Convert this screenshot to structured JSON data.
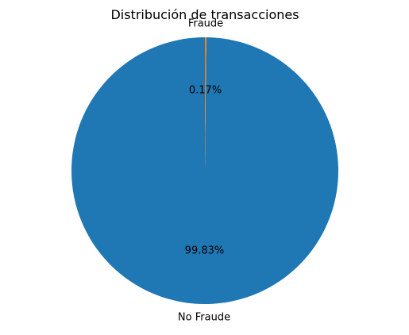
{
  "chart_data": {
    "type": "pie",
    "title": "Distribución de transacciones",
    "categories": [
      "No Fraude",
      "Fraude"
    ],
    "values": [
      99.83,
      0.17
    ],
    "value_labels": [
      "99.83%",
      "0.17%"
    ],
    "colors": [
      "#1f77b4",
      "#ff7f0e"
    ],
    "start_angle_deg": 90,
    "direction": "counterclockwise",
    "legend": "none"
  }
}
